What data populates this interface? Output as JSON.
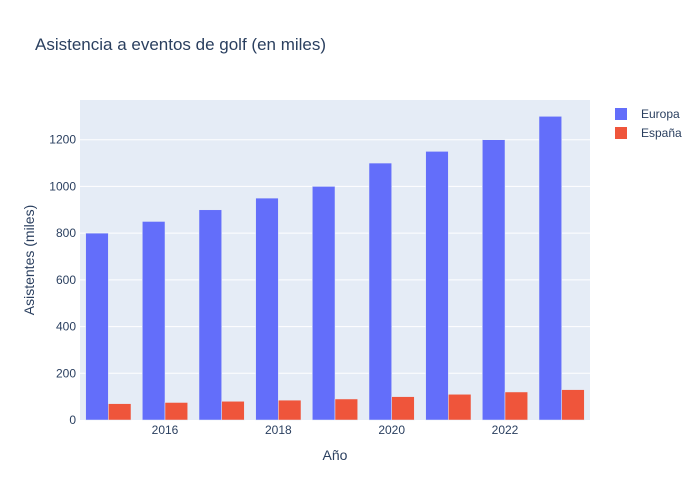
{
  "chart_data": {
    "type": "bar",
    "title": "Asistencia a eventos de golf (en miles)",
    "xlabel": "Año",
    "ylabel": "Asistentes (miles)",
    "categories": [
      2015,
      2016,
      2017,
      2018,
      2019,
      2020,
      2021,
      2022,
      2023
    ],
    "x_tick_labels": [
      "2016",
      "2018",
      "2020",
      "2022"
    ],
    "y_tick_labels": [
      "0",
      "200",
      "400",
      "600",
      "800",
      "1000",
      "1200"
    ],
    "y_ticks": [
      0,
      200,
      400,
      600,
      800,
      1000,
      1200
    ],
    "ylim": [
      0,
      1370
    ],
    "grid": true,
    "legend_position": "top-right",
    "series": [
      {
        "name": "Europa",
        "color": "#636efa",
        "values": [
          800,
          850,
          900,
          950,
          1000,
          1100,
          1150,
          1200,
          1300
        ]
      },
      {
        "name": "España",
        "color": "#ef553b",
        "values": [
          70,
          75,
          80,
          85,
          90,
          100,
          110,
          120,
          130
        ]
      }
    ],
    "plot_bg": "#e5ecf6",
    "grid_color": "#ffffff"
  }
}
